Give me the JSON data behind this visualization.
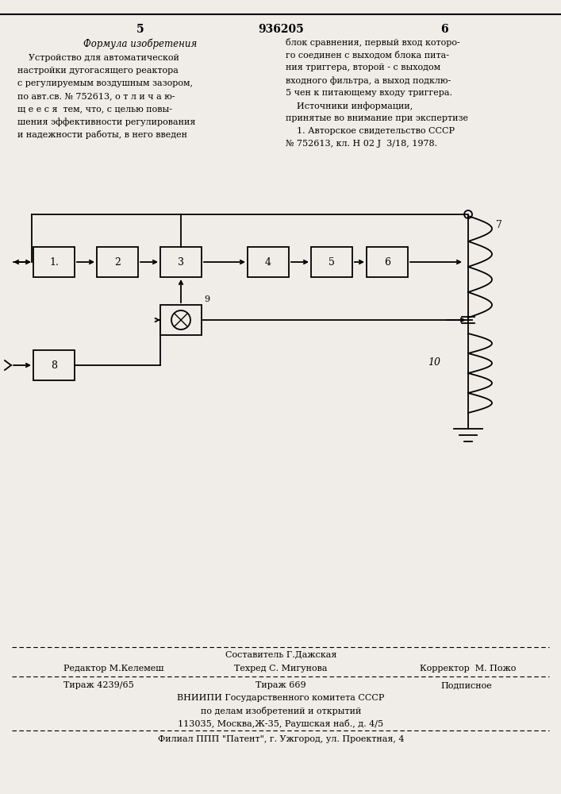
{
  "bg_color": "#f0ede8",
  "page_number_left": "5",
  "page_number_center": "936205",
  "page_number_right": "6",
  "left_heading": "Формула изобретения",
  "left_text": "    Устройство для автоматической\nнастройки дугогасящего реактора\nс регулируемым воздушным зазором,\nпо авт.св. № 752613, о т л и ч а ю-\nщ е е с я  тем, что, с целью повы-\nшения эффективности регулирования\nи надежности работы, в него введен",
  "right_text": "блок сравнения, первый вход которо-\nго соединен с выходом блока пита-\nния триггера, второй - с выходом\nвходного фильтра, а выход подклю-\n5 чен к питающему входу триггера.\n    Источники информации,\nпринятые во внимание при экспертизе\n    1. Авторское свидетельство СССР\n№ 752613, кл. Н 02 J  3/18, 1978.",
  "editor_line": "Редактор М.Келемеш",
  "composer_line": "Составитель Г.Дажская",
  "techred_line": "Техред С. Мигунова",
  "corrector_line": "Корректор  М. Пожо",
  "tirazh1": "Тираж 4239/65",
  "tirazh2": "Тираж 669",
  "podpisnoe": "Подписное",
  "vniipи": "ВНИИПИ Государственного комитета СССР",
  "po_delam": "по делам изобретений и открытий",
  "address": "113035, Москва,Ж-35, Раушская наб., д. 4/5",
  "filial": "Филиал ППП \"Патент\", г. Ужгород, ул. Проектная, 4"
}
